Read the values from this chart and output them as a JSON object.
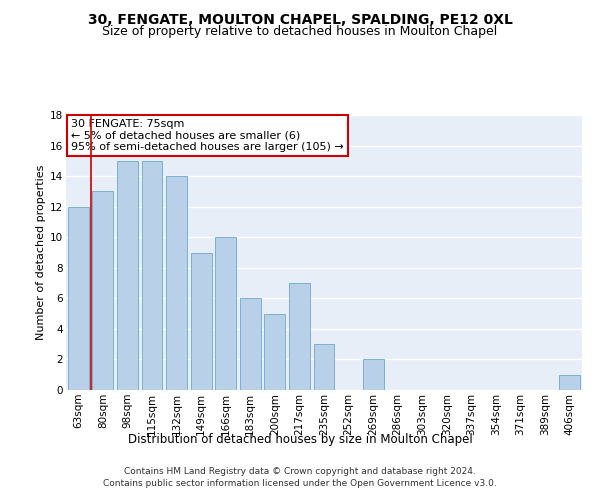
{
  "title": "30, FENGATE, MOULTON CHAPEL, SPALDING, PE12 0XL",
  "subtitle": "Size of property relative to detached houses in Moulton Chapel",
  "xlabel": "Distribution of detached houses by size in Moulton Chapel",
  "ylabel": "Number of detached properties",
  "categories": [
    "63sqm",
    "80sqm",
    "98sqm",
    "115sqm",
    "132sqm",
    "149sqm",
    "166sqm",
    "183sqm",
    "200sqm",
    "217sqm",
    "235sqm",
    "252sqm",
    "269sqm",
    "286sqm",
    "303sqm",
    "320sqm",
    "337sqm",
    "354sqm",
    "371sqm",
    "389sqm",
    "406sqm"
  ],
  "values": [
    12,
    13,
    15,
    15,
    14,
    9,
    10,
    6,
    5,
    7,
    3,
    0,
    2,
    0,
    0,
    0,
    0,
    0,
    0,
    0,
    1
  ],
  "bar_color": "#b8d0e8",
  "bar_edge_color": "#7aafd4",
  "background_color": "#e8eef8",
  "grid_color": "#ffffff",
  "annotation_text": "30 FENGATE: 75sqm\n← 5% of detached houses are smaller (6)\n95% of semi-detached houses are larger (105) →",
  "annotation_box_facecolor": "#ffffff",
  "annotation_box_edgecolor": "#cc0000",
  "vline_color": "#cc0000",
  "vline_x": 0.5,
  "ylim": [
    0,
    18
  ],
  "yticks": [
    0,
    2,
    4,
    6,
    8,
    10,
    12,
    14,
    16,
    18
  ],
  "footer_text": "Contains HM Land Registry data © Crown copyright and database right 2024.\nContains public sector information licensed under the Open Government Licence v3.0.",
  "title_fontsize": 10,
  "subtitle_fontsize": 9,
  "xlabel_fontsize": 8.5,
  "ylabel_fontsize": 8,
  "tick_fontsize": 7.5,
  "annotation_fontsize": 8,
  "footer_fontsize": 6.5
}
